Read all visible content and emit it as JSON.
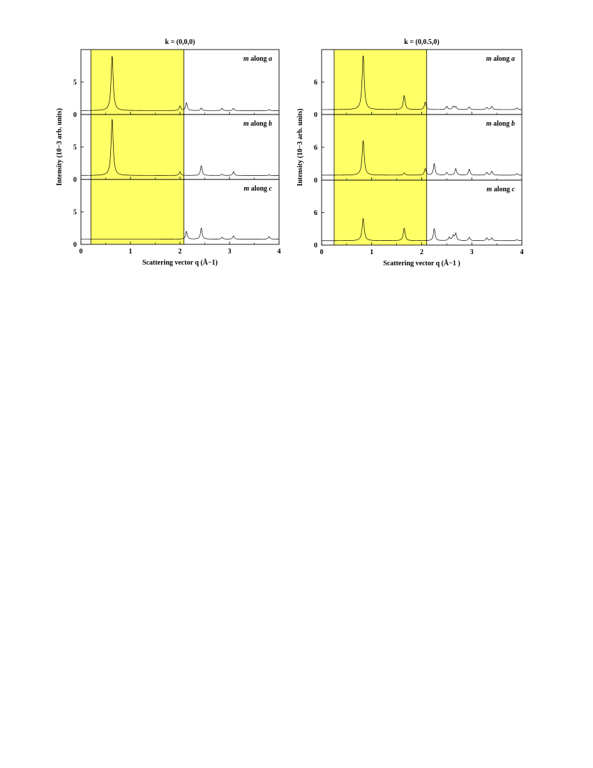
{
  "chart_data": [
    {
      "type": "line",
      "title": "k = (0,0,0)",
      "xlabel": "Scattering vector q (Å−1)",
      "ylabel": "Intensity (10−3 arb. units)",
      "xlim": [
        0,
        4
      ],
      "xticks": [
        "0",
        "1",
        "2",
        "3",
        "4"
      ],
      "highlight_x_range": [
        0.2,
        2.08
      ],
      "highlight_color": "#ffff66",
      "panels": [
        {
          "label": "m along a",
          "ylim": [
            0,
            10
          ],
          "yticks": [
            "0",
            "5"
          ],
          "baseline": 0.6,
          "peaks": [
            [
              0.63,
              8.4,
              0.025
            ],
            [
              2.0,
              0.7,
              0.02
            ],
            [
              2.13,
              1.2,
              0.02
            ],
            [
              2.43,
              0.4,
              0.018
            ],
            [
              2.85,
              0.35,
              0.018
            ],
            [
              3.08,
              0.35,
              0.018
            ],
            [
              3.8,
              0.15,
              0.02
            ]
          ]
        },
        {
          "label": "m along b",
          "ylim": [
            0,
            10
          ],
          "yticks": [
            "0",
            "5"
          ],
          "baseline": 0.6,
          "peaks": [
            [
              0.63,
              8.7,
              0.025
            ],
            [
              2.0,
              0.6,
              0.02
            ],
            [
              2.43,
              1.5,
              0.02
            ],
            [
              2.85,
              0.2,
              0.018
            ],
            [
              3.08,
              0.6,
              0.018
            ],
            [
              3.8,
              0.1,
              0.02
            ]
          ]
        },
        {
          "label": "m along c",
          "ylim": [
            0,
            10
          ],
          "yticks": [
            "0",
            "5"
          ],
          "baseline": 0.8,
          "peaks": [
            [
              2.13,
              1.2,
              0.02
            ],
            [
              2.43,
              1.7,
              0.02
            ],
            [
              2.85,
              0.3,
              0.018
            ],
            [
              3.08,
              0.5,
              0.018
            ],
            [
              3.8,
              0.4,
              0.02
            ]
          ]
        }
      ]
    },
    {
      "type": "line",
      "title": "k = (0,0.5,0)",
      "xlabel": "Scattering vector q (Å−1 )",
      "ylabel": "Intensity (10−3 arb. units)",
      "xlim": [
        0,
        4
      ],
      "xticks": [
        "0",
        "1",
        "2",
        "3",
        "4"
      ],
      "highlight_x_range": [
        0.25,
        2.1
      ],
      "highlight_color": "#ffff66",
      "panels": [
        {
          "label": "m along a",
          "ylim": [
            0,
            12
          ],
          "yticks": [
            "0",
            "6"
          ],
          "baseline": 0.9,
          "peaks": [
            [
              0.83,
              10.0,
              0.025
            ],
            [
              1.65,
              2.6,
              0.022
            ],
            [
              2.07,
              1.4,
              0.02
            ],
            [
              2.5,
              0.6,
              0.02
            ],
            [
              2.63,
              0.6,
              0.02
            ],
            [
              2.68,
              0.5,
              0.02
            ],
            [
              2.95,
              0.5,
              0.02
            ],
            [
              3.3,
              0.4,
              0.02
            ],
            [
              3.4,
              0.6,
              0.02
            ],
            [
              3.9,
              0.3,
              0.02
            ]
          ]
        },
        {
          "label": "m along b",
          "ylim": [
            0,
            12
          ],
          "yticks": [
            "0",
            "6"
          ],
          "baseline": 0.9,
          "peaks": [
            [
              0.83,
              6.3,
              0.025
            ],
            [
              1.65,
              0.4,
              0.022
            ],
            [
              2.07,
              1.2,
              0.02
            ],
            [
              2.25,
              2.1,
              0.02
            ],
            [
              2.5,
              0.5,
              0.02
            ],
            [
              2.68,
              1.2,
              0.02
            ],
            [
              2.95,
              1.1,
              0.02
            ],
            [
              3.3,
              0.5,
              0.02
            ],
            [
              3.4,
              0.7,
              0.02
            ],
            [
              3.9,
              0.3,
              0.02
            ]
          ]
        },
        {
          "label": "m along c",
          "ylim": [
            0,
            12
          ],
          "yticks": [
            "0",
            "6"
          ],
          "baseline": 0.8,
          "peaks": [
            [
              0.83,
              4.1,
              0.025
            ],
            [
              1.65,
              2.3,
              0.022
            ],
            [
              2.25,
              2.2,
              0.02
            ],
            [
              2.55,
              0.6,
              0.02
            ],
            [
              2.63,
              0.9,
              0.02
            ],
            [
              2.68,
              1.3,
              0.02
            ],
            [
              2.95,
              0.6,
              0.02
            ],
            [
              3.3,
              0.5,
              0.02
            ],
            [
              3.4,
              0.5,
              0.02
            ],
            [
              3.9,
              0.2,
              0.02
            ]
          ]
        }
      ]
    }
  ]
}
